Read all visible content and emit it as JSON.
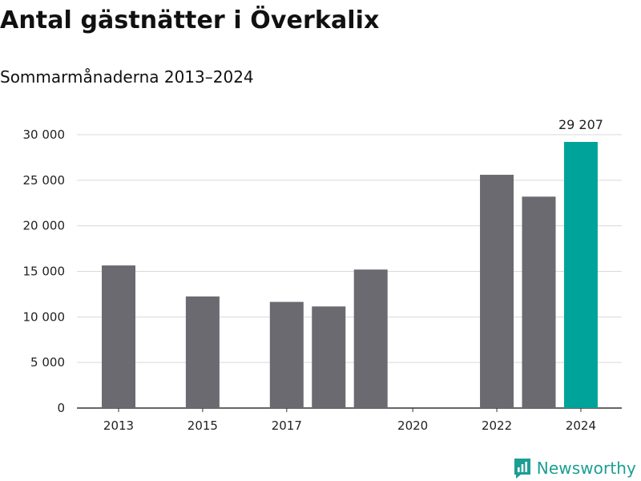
{
  "header": {
    "title": "Antal gästnätter i Överkalix",
    "subtitle": "Sommarmånaderna 2013–2024"
  },
  "brand": {
    "name": "Newsworthy",
    "color": "#1b9e94",
    "icon": "newsworthy-logo-icon"
  },
  "colors": {
    "bar": "#6b6a70",
    "highlight": "#00a39a",
    "grid": "#d9d9d9",
    "axis": "#333333"
  },
  "chart_data": {
    "type": "bar",
    "title": "Antal gästnätter i Överkalix",
    "subtitle": "Sommarmånaderna 2013–2024",
    "xlabel": "",
    "ylabel": "",
    "categories": [
      "2013",
      "2014",
      "2015",
      "2016",
      "2017",
      "2018",
      "2019",
      "2020",
      "2021",
      "2022",
      "2023",
      "2024"
    ],
    "values": [
      15650,
      null,
      12250,
      null,
      11650,
      11150,
      15200,
      null,
      null,
      25600,
      23200,
      29207
    ],
    "highlight": "2024",
    "x_tick_labels": [
      "2013",
      "2015",
      "2017",
      "2020",
      "2022",
      "2024"
    ],
    "y_ticks": [
      0,
      5000,
      10000,
      15000,
      20000,
      25000,
      30000
    ],
    "y_tick_labels": [
      "0",
      "5 000",
      "10 000",
      "15 000",
      "20 000",
      "25 000",
      "30 000"
    ],
    "ylim": [
      0,
      30000
    ],
    "data_labels": [
      {
        "category": "2024",
        "text": "29 207"
      }
    ],
    "grid": true,
    "legend": "none"
  }
}
